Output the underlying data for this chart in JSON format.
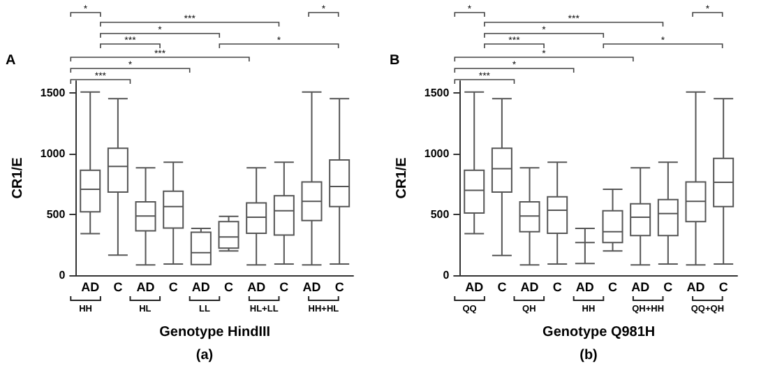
{
  "chart_data": [
    {
      "type": "box",
      "categories": [
        "AD",
        "C",
        "AD",
        "C",
        "AD",
        "C",
        "AD",
        "C",
        "AD",
        "C"
      ],
      "color": "#555555",
      "ylabel": "CR1/E",
      "xlabel": "Genotype HindIII",
      "ylim": [
        0,
        1600
      ],
      "yticks": [
        0,
        500,
        1000,
        1500
      ],
      "boxes": [
        {
          "low": 342,
          "q1": 523,
          "median": 708,
          "q3": 865,
          "high": 1510
        },
        {
          "low": 165,
          "q1": 685,
          "median": 896,
          "q3": 1046,
          "high": 1454
        },
        {
          "low": 85,
          "q1": 365,
          "median": 488,
          "q3": 604,
          "high": 885
        },
        {
          "low": 92,
          "q1": 388,
          "median": 565,
          "q3": 692,
          "high": 931
        },
        {
          "low": 88,
          "q1": 88,
          "median": 185,
          "q3": 354,
          "high": 385
        },
        {
          "low": 200,
          "q1": 223,
          "median": 315,
          "q3": 442,
          "high": 485
        },
        {
          "low": 85,
          "q1": 346,
          "median": 477,
          "q3": 596,
          "high": 885
        },
        {
          "low": 92,
          "q1": 331,
          "median": 531,
          "q3": 654,
          "high": 931
        },
        {
          "low": 85,
          "q1": 450,
          "median": 608,
          "q3": 769,
          "high": 1510
        },
        {
          "low": 92,
          "q1": 565,
          "median": 731,
          "q3": 950,
          "high": 1454
        }
      ],
      "annotations": [
        "*",
        "*",
        "***",
        "*",
        "***",
        "*",
        "***",
        "*",
        "***",
        "HH",
        "HL",
        "LL",
        "HL+LL",
        "HH+HL",
        "A",
        "(a)"
      ]
    },
    {
      "type": "box",
      "categories": [
        "AD",
        "C",
        "AD",
        "C",
        "AD",
        "C",
        "AD",
        "C",
        "AD",
        "C"
      ],
      "color": "#555555",
      "ylabel": "CR1/E",
      "xlabel": "Genotype Q981H",
      "ylim": [
        0,
        1600
      ],
      "yticks": [
        0,
        500,
        1000,
        1500
      ],
      "boxes": [
        {
          "low": 342,
          "q1": 512,
          "median": 700,
          "q3": 865,
          "high": 1510
        },
        {
          "low": 162,
          "q1": 685,
          "median": 877,
          "q3": 1046,
          "high": 1454
        },
        {
          "low": 85,
          "q1": 358,
          "median": 488,
          "q3": 604,
          "high": 885
        },
        {
          "low": 92,
          "q1": 346,
          "median": 535,
          "q3": 646,
          "high": 931
        },
        {
          "low": 96,
          "q1": 269,
          "median": 269,
          "q3": 269,
          "high": 385
        },
        {
          "low": 200,
          "q1": 269,
          "median": 358,
          "q3": 531,
          "high": 708
        },
        {
          "low": 85,
          "q1": 327,
          "median": 477,
          "q3": 588,
          "high": 885
        },
        {
          "low": 92,
          "q1": 327,
          "median": 508,
          "q3": 623,
          "high": 931
        },
        {
          "low": 85,
          "q1": 442,
          "median": 608,
          "q3": 769,
          "high": 1510
        },
        {
          "low": 92,
          "q1": 565,
          "median": 765,
          "q3": 962,
          "high": 1454
        }
      ],
      "annotations": [
        "*",
        "*",
        "***",
        "*",
        "***",
        "*",
        "*",
        "*",
        "***",
        "QQ",
        "QH",
        "HH",
        "QH+HH",
        "QQ+QH",
        "B",
        "(b)"
      ]
    }
  ]
}
